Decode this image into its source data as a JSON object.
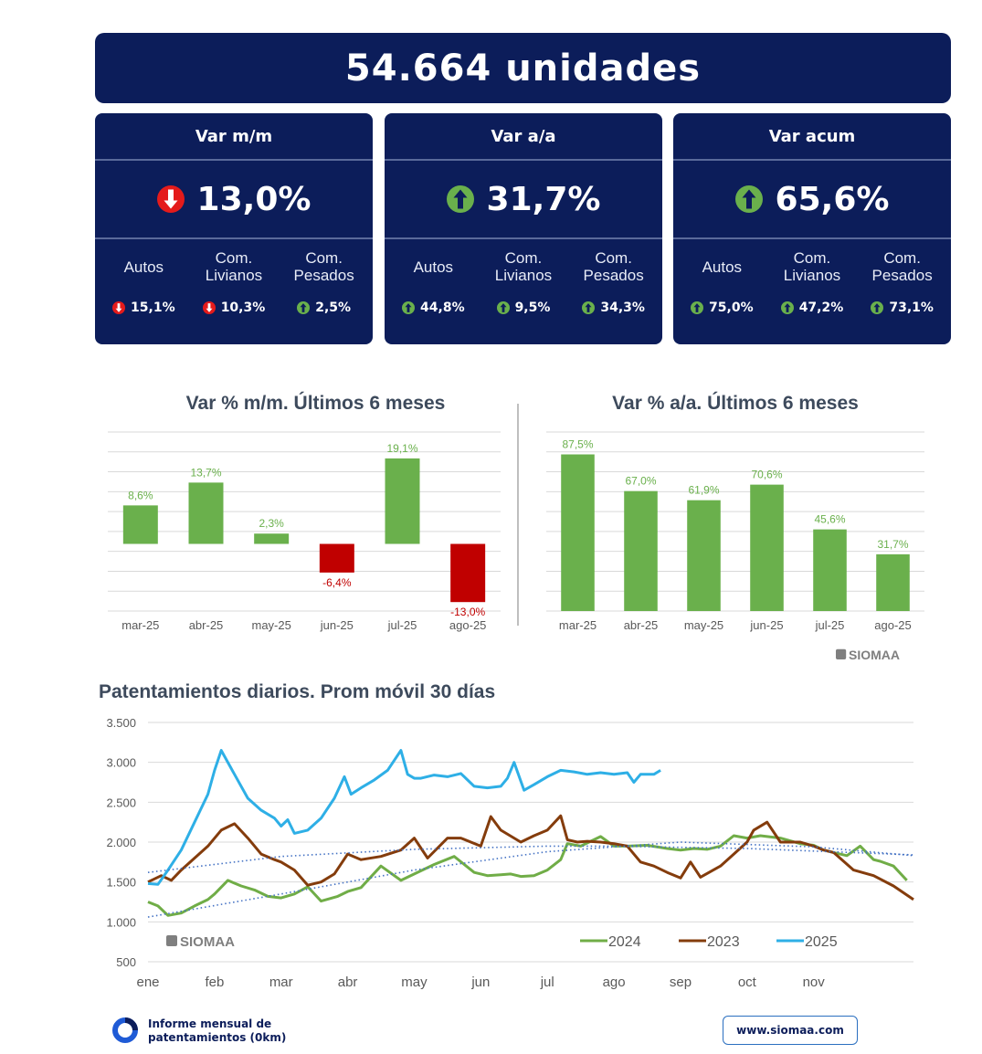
{
  "header": {
    "title": "54.664 unidades"
  },
  "cards": [
    {
      "title": "Var m/m",
      "value": "13,0%",
      "direction": "down",
      "subs": [
        {
          "label": "Autos",
          "value": "15,1%",
          "direction": "down"
        },
        {
          "label": "Com. Livianos",
          "value": "10,3%",
          "direction": "down"
        },
        {
          "label": "Com. Pesados",
          "value": "2,5%",
          "direction": "up"
        }
      ]
    },
    {
      "title": "Var a/a",
      "value": "31,7%",
      "direction": "up",
      "subs": [
        {
          "label": "Autos",
          "value": "44,8%",
          "direction": "up"
        },
        {
          "label": "Com. Livianos",
          "value": "9,5%",
          "direction": "up"
        },
        {
          "label": "Com. Pesados",
          "value": "34,3%",
          "direction": "up"
        }
      ]
    },
    {
      "title": "Var acum",
      "value": "65,6%",
      "direction": "up",
      "subs": [
        {
          "label": "Autos",
          "value": "75,0%",
          "direction": "up"
        },
        {
          "label": "Com. Livianos",
          "value": "47,2%",
          "direction": "up"
        },
        {
          "label": "Com. Pesados",
          "value": "73,1%",
          "direction": "up"
        }
      ]
    }
  ],
  "colors": {
    "navy": "#0c1d5a",
    "up": "#6ab04c",
    "down": "#e41b1b",
    "bar_pos": "#6ab04c",
    "bar_neg": "#c00000",
    "line_2024": "#70ad47",
    "line_2023": "#843c0c",
    "line_2025": "#2eafe6",
    "trend": "#4472c4"
  },
  "watermark": "SIOMAA",
  "footer": {
    "report_line1": "Informe mensual de",
    "report_line2": "patentamientos (0km)",
    "url": "www.siomaa.com"
  },
  "chart_data": [
    {
      "type": "bar",
      "title": "Var % m/m. Últimos 6 meses",
      "categories": [
        "mar-25",
        "abr-25",
        "may-25",
        "jun-25",
        "jul-25",
        "ago-25"
      ],
      "values": [
        8.6,
        13.7,
        2.3,
        -6.4,
        19.1,
        -13.0
      ],
      "labels": [
        "8,6%",
        "13,7%",
        "2,3%",
        "-6,4%",
        "19,1%",
        "-13,0%"
      ],
      "ylim": [
        -15,
        25
      ],
      "grid": true
    },
    {
      "type": "bar",
      "title": "Var % a/a. Últimos 6 meses",
      "categories": [
        "mar-25",
        "abr-25",
        "may-25",
        "jun-25",
        "jul-25",
        "ago-25"
      ],
      "values": [
        87.5,
        67.0,
        61.9,
        70.6,
        45.6,
        31.7
      ],
      "labels": [
        "87,5%",
        "67,0%",
        "61,9%",
        "70,6%",
        "45,6%",
        "31,7%"
      ],
      "ylim": [
        0,
        100
      ],
      "grid": true
    },
    {
      "type": "line",
      "title": "Patentamientos diarios. Prom móvil 30 días",
      "x_labels": [
        "ene",
        "feb",
        "mar",
        "abr",
        "may",
        "jun",
        "jul",
        "ago",
        "sep",
        "oct",
        "nov"
      ],
      "y_ticks": [
        "3.500",
        "3.000",
        "2.500",
        "2.000",
        "1.500",
        "1.000",
        "500"
      ],
      "ylim": [
        500,
        3500
      ],
      "xlim": [
        0,
        11.5
      ],
      "legend_position": "bottom-right",
      "series": [
        {
          "name": "2024",
          "x": [
            0,
            0.15,
            0.3,
            0.5,
            0.7,
            0.9,
            1.0,
            1.2,
            1.4,
            1.6,
            1.8,
            2.0,
            2.2,
            2.4,
            2.6,
            2.85,
            3.0,
            3.2,
            3.5,
            3.8,
            4.0,
            4.3,
            4.6,
            4.9,
            5.1,
            5.3,
            5.45,
            5.6,
            5.8,
            6.0,
            6.2,
            6.3,
            6.5,
            6.8,
            7.0,
            7.2,
            7.5,
            7.8,
            8.0,
            8.2,
            8.4,
            8.6,
            8.8,
            9.0,
            9.2,
            9.5,
            9.8,
            10.0,
            10.15,
            10.3,
            10.5,
            10.7,
            10.9,
            11.0,
            11.2,
            11.4
          ],
          "y": [
            1250,
            1200,
            1080,
            1110,
            1200,
            1280,
            1350,
            1520,
            1450,
            1400,
            1320,
            1300,
            1350,
            1440,
            1260,
            1320,
            1380,
            1430,
            1700,
            1520,
            1600,
            1720,
            1820,
            1620,
            1580,
            1590,
            1600,
            1570,
            1580,
            1650,
            1780,
            1980,
            1950,
            2070,
            1950,
            1950,
            1960,
            1920,
            1900,
            1920,
            1910,
            1950,
            2080,
            2050,
            2080,
            2050,
            1980,
            1960,
            1900,
            1870,
            1830,
            1950,
            1780,
            1760,
            1700,
            1520
          ]
        },
        {
          "name": "2023",
          "x": [
            0,
            0.2,
            0.35,
            0.5,
            0.7,
            0.9,
            1.1,
            1.3,
            1.5,
            1.7,
            1.9,
            2.0,
            2.2,
            2.4,
            2.6,
            2.8,
            3.0,
            3.2,
            3.5,
            3.8,
            4.0,
            4.2,
            4.5,
            4.7,
            5.0,
            5.15,
            5.3,
            5.6,
            5.8,
            6.0,
            6.2,
            6.3,
            6.45,
            6.6,
            6.8,
            7.0,
            7.2,
            7.4,
            7.6,
            7.8,
            8.0,
            8.15,
            8.3,
            8.6,
            8.8,
            9.0,
            9.1,
            9.3,
            9.5,
            9.8,
            10.0,
            10.15,
            10.3,
            10.6,
            10.9,
            11.2,
            11.5
          ],
          "y": [
            1500,
            1580,
            1520,
            1650,
            1800,
            1950,
            2150,
            2230,
            2050,
            1850,
            1780,
            1750,
            1650,
            1460,
            1500,
            1600,
            1850,
            1780,
            1820,
            1900,
            2050,
            1800,
            2050,
            2050,
            1950,
            2320,
            2150,
            2000,
            2080,
            2150,
            2330,
            2030,
            2000,
            2010,
            2000,
            1980,
            1950,
            1750,
            1700,
            1620,
            1550,
            1750,
            1560,
            1700,
            1850,
            2000,
            2150,
            2250,
            2000,
            2000,
            1950,
            1900,
            1870,
            1650,
            1580,
            1450,
            1280
          ]
        },
        {
          "name": "2025",
          "x": [
            0,
            0.15,
            0.3,
            0.5,
            0.7,
            0.9,
            1.0,
            1.1,
            1.3,
            1.5,
            1.7,
            1.9,
            2.0,
            2.1,
            2.2,
            2.4,
            2.6,
            2.8,
            2.95,
            3.05,
            3.2,
            3.4,
            3.6,
            3.8,
            3.9,
            4.0,
            4.1,
            4.3,
            4.5,
            4.7,
            4.9,
            5.1,
            5.3,
            5.4,
            5.5,
            5.65,
            5.8,
            6.0,
            6.2,
            6.4,
            6.6,
            6.8,
            7.0,
            7.2,
            7.3,
            7.4,
            7.6,
            7.7
          ],
          "y": [
            1480,
            1470,
            1650,
            1900,
            2250,
            2600,
            2900,
            3150,
            2850,
            2550,
            2400,
            2300,
            2200,
            2280,
            2110,
            2150,
            2300,
            2550,
            2820,
            2600,
            2680,
            2780,
            2900,
            3150,
            2850,
            2800,
            2800,
            2840,
            2820,
            2860,
            2700,
            2680,
            2700,
            2800,
            3000,
            2650,
            2720,
            2820,
            2900,
            2880,
            2850,
            2870,
            2850,
            2870,
            2750,
            2850,
            2850,
            2900
          ]
        },
        {
          "x": [
            0,
            2,
            4,
            6,
            8,
            10,
            11.5
          ],
          "y": [
            1060,
            1350,
            1650,
            1880,
            2000,
            1940,
            1830
          ],
          "style": "dotted"
        },
        {
          "x": [
            0,
            2,
            4,
            6,
            7,
            9,
            11.5
          ],
          "y": [
            1620,
            1820,
            1910,
            1950,
            1950,
            1920,
            1840
          ],
          "style": "dotted"
        }
      ]
    }
  ]
}
